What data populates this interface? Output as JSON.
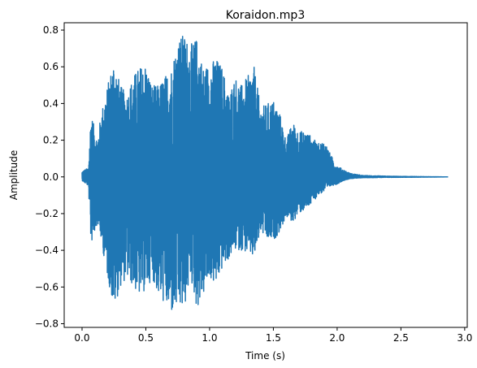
{
  "chart_data": {
    "type": "line",
    "title": "Koraidon.mp3",
    "xlabel": "Time (s)",
    "ylabel": "Amplitude",
    "xlim": [
      -0.14,
      3.02
    ],
    "ylim": [
      -0.82,
      0.84
    ],
    "xticks": [
      0.0,
      0.5,
      1.0,
      1.5,
      2.0,
      2.5,
      3.0
    ],
    "xtick_labels": [
      "0.0",
      "0.5",
      "1.0",
      "1.5",
      "2.0",
      "2.5",
      "3.0"
    ],
    "yticks": [
      -0.8,
      -0.6,
      -0.4,
      -0.2,
      0.0,
      0.2,
      0.4,
      0.6,
      0.8
    ],
    "ytick_labels": [
      "−0.8",
      "−0.6",
      "−0.4",
      "−0.2",
      "0.0",
      "0.2",
      "0.4",
      "0.6",
      "0.8"
    ],
    "grid": false,
    "series": [
      {
        "color": "#1f77b4",
        "duration": 2.87,
        "envelope": {
          "t": [
            0.0,
            0.05,
            0.07,
            0.12,
            0.15,
            0.2,
            0.25,
            0.3,
            0.35,
            0.4,
            0.45,
            0.5,
            0.55,
            0.6,
            0.7,
            0.75,
            0.8,
            0.85,
            0.9,
            0.95,
            1.0,
            1.05,
            1.1,
            1.15,
            1.2,
            1.25,
            1.3,
            1.35,
            1.4,
            1.45,
            1.5,
            1.55,
            1.6,
            1.65,
            1.7,
            1.75,
            1.8,
            1.85,
            1.9,
            1.95,
            2.0,
            2.05,
            2.1,
            2.2,
            2.4,
            2.6,
            2.87
          ],
          "max": [
            0.03,
            0.05,
            0.35,
            0.2,
            0.35,
            0.5,
            0.65,
            0.5,
            0.45,
            0.55,
            0.6,
            0.62,
            0.5,
            0.5,
            0.6,
            0.76,
            0.78,
            0.72,
            0.76,
            0.6,
            0.62,
            0.65,
            0.6,
            0.45,
            0.55,
            0.5,
            0.55,
            0.6,
            0.38,
            0.4,
            0.42,
            0.35,
            0.2,
            0.3,
            0.25,
            0.25,
            0.22,
            0.18,
            0.2,
            0.12,
            0.06,
            0.04,
            0.02,
            0.008,
            0.004,
            0.002,
            0.0
          ],
          "min": [
            -0.02,
            -0.05,
            -0.37,
            -0.25,
            -0.35,
            -0.55,
            -0.72,
            -0.6,
            -0.55,
            -0.6,
            -0.65,
            -0.62,
            -0.55,
            -0.65,
            -0.75,
            -0.72,
            -0.73,
            -0.55,
            -0.72,
            -0.65,
            -0.55,
            -0.6,
            -0.5,
            -0.45,
            -0.4,
            -0.4,
            -0.42,
            -0.45,
            -0.3,
            -0.35,
            -0.35,
            -0.3,
            -0.22,
            -0.25,
            -0.2,
            -0.18,
            -0.15,
            -0.1,
            -0.08,
            -0.05,
            -0.04,
            -0.02,
            -0.01,
            -0.005,
            -0.003,
            -0.002,
            0.0
          ]
        }
      }
    ]
  }
}
